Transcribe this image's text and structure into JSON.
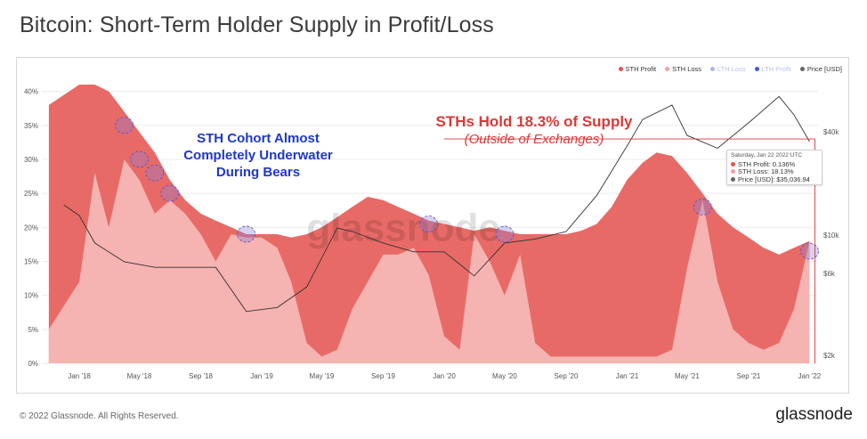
{
  "title": "Bitcoin: Short-Term Holder Supply in Profit/Loss",
  "footer": {
    "copyright": "© 2022 Glassnode. All Rights Reserved.",
    "brand": "glassnode"
  },
  "watermark": "glassnode",
  "legend": [
    {
      "label": "STH Profit",
      "color": "#e5524f",
      "muted": false
    },
    {
      "label": "STH Loss",
      "color": "#f2a0a0",
      "muted": false
    },
    {
      "label": "LTH Loss",
      "color": "#aab4f2",
      "muted": true
    },
    {
      "label": "LTH Profit",
      "color": "#3d5ce0",
      "muted": true
    },
    {
      "label": "Price [USD]",
      "color": "#666666",
      "muted": false
    }
  ],
  "annotations": {
    "blue_line1": "STH Cohort Almost",
    "blue_line2": "Completely Underwater",
    "blue_line3": "During Bears",
    "red_line1": "STHs Hold 18.3% of Supply",
    "red_line2": "(Outside of Exchanges)"
  },
  "tooltip": {
    "date": "Saturday, Jan 22 2022 UTC",
    "rows": [
      {
        "label": "STH Profit: 0.136%",
        "color": "#e5524f"
      },
      {
        "label": "STH Loss: 18.13%",
        "color": "#f2a0a0"
      },
      {
        "label": "Price [USD]: $35,036.94",
        "color": "#666666"
      }
    ]
  },
  "chart_data": {
    "type": "area",
    "x_tick_labels": [
      "Jan '18",
      "May '18",
      "Sep '18",
      "Jan '19",
      "May '19",
      "Sep '19",
      "Jan '20",
      "May '20",
      "Sep '20",
      "Jan '21",
      "May '21",
      "Sep '21",
      "Jan '22"
    ],
    "y_left_ticks": [
      "0%",
      "5%",
      "10%",
      "15%",
      "20%",
      "25%",
      "30%",
      "35%",
      "40%"
    ],
    "y_left_range": [
      0,
      41
    ],
    "y_right_ticks": [
      "$2k",
      "$6k",
      "$10k",
      "$40k"
    ],
    "y_right_scale": "log",
    "grid": true,
    "legend_position": "top-right",
    "series": [
      {
        "name": "STH Total (Profit + Loss) %",
        "x": [
          "2017-11",
          "2018-01",
          "2018-02",
          "2018-03",
          "2018-04",
          "2018-05",
          "2018-06",
          "2018-07",
          "2018-08",
          "2018-09",
          "2018-10",
          "2018-11",
          "2018-12",
          "2019-01",
          "2019-02",
          "2019-03",
          "2019-04",
          "2019-05",
          "2019-06",
          "2019-07",
          "2019-08",
          "2019-09",
          "2019-10",
          "2019-11",
          "2019-12",
          "2020-01",
          "2020-02",
          "2020-03",
          "2020-04",
          "2020-05",
          "2020-06",
          "2020-07",
          "2020-08",
          "2020-09",
          "2020-10",
          "2020-11",
          "2020-12",
          "2021-01",
          "2021-02",
          "2021-03",
          "2021-04",
          "2021-05",
          "2021-06",
          "2021-07",
          "2021-08",
          "2021-09",
          "2021-10",
          "2021-11",
          "2021-12",
          "2022-01"
        ],
        "values": [
          38,
          41,
          41,
          40,
          37,
          34,
          31,
          27,
          24,
          22,
          21,
          20,
          19,
          19,
          19,
          18.5,
          19,
          20,
          21.5,
          23,
          24.5,
          24,
          23,
          22,
          21,
          20.5,
          20,
          19.5,
          20,
          19.5,
          19,
          19,
          19,
          19,
          19.5,
          20.5,
          23,
          27,
          29.5,
          31,
          30.5,
          28,
          25,
          22,
          20,
          18.5,
          17,
          16,
          17,
          18
        ]
      },
      {
        "name": "STH Loss %",
        "x": [
          "2017-11",
          "2018-01",
          "2018-02",
          "2018-03",
          "2018-04",
          "2018-05",
          "2018-06",
          "2018-07",
          "2018-08",
          "2018-09",
          "2018-10",
          "2018-11",
          "2018-12",
          "2019-01",
          "2019-02",
          "2019-03",
          "2019-04",
          "2019-05",
          "2019-06",
          "2019-07",
          "2019-08",
          "2019-09",
          "2019-10",
          "2019-11",
          "2019-12",
          "2020-01",
          "2020-02",
          "2020-03",
          "2020-04",
          "2020-05",
          "2020-06",
          "2020-07",
          "2020-08",
          "2020-09",
          "2020-10",
          "2020-11",
          "2020-12",
          "2021-01",
          "2021-02",
          "2021-03",
          "2021-04",
          "2021-05",
          "2021-06",
          "2021-07",
          "2021-08",
          "2021-09",
          "2021-10",
          "2021-11",
          "2021-12",
          "2022-01"
        ],
        "values": [
          5,
          12,
          28,
          20,
          30,
          27,
          22,
          24,
          22,
          19,
          15,
          19,
          18.5,
          18.5,
          17,
          12,
          3,
          1,
          2,
          8,
          12,
          16,
          16,
          17,
          13,
          4,
          2,
          19,
          15,
          10,
          16,
          3,
          1,
          1,
          1,
          1,
          1,
          1,
          1,
          1,
          2,
          14,
          24,
          12,
          5,
          3,
          2,
          3,
          8,
          18
        ]
      },
      {
        "name": "Price [USD]",
        "x": [
          "2017-12",
          "2018-01",
          "2018-02",
          "2018-04",
          "2018-06",
          "2018-08",
          "2018-10",
          "2018-12",
          "2019-02",
          "2019-04",
          "2019-06",
          "2019-07",
          "2019-09",
          "2019-11",
          "2020-01",
          "2020-03",
          "2020-05",
          "2020-07",
          "2020-09",
          "2020-11",
          "2021-01",
          "2021-02",
          "2021-04",
          "2021-05",
          "2021-07",
          "2021-09",
          "2021-11",
          "2021-12",
          "2022-01"
        ],
        "values": [
          15000,
          13000,
          9000,
          7000,
          6500,
          6500,
          6500,
          3600,
          3800,
          5000,
          11000,
          10500,
          9000,
          8000,
          8000,
          5800,
          9000,
          9500,
          10500,
          17000,
          33000,
          47000,
          57000,
          38000,
          32000,
          45000,
          64000,
          50000,
          35000
        ]
      }
    ]
  }
}
